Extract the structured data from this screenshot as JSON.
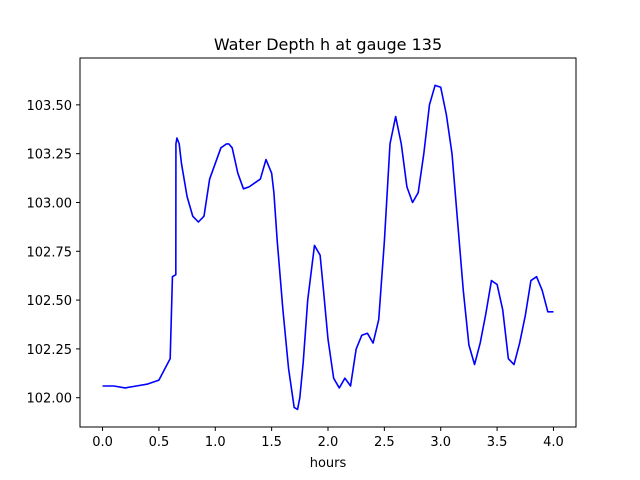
{
  "chart_data": {
    "type": "line",
    "title": "Water Depth h at gauge 135",
    "xlabel": "hours",
    "ylabel": "",
    "xlim": [
      -0.2,
      4.2
    ],
    "ylim": [
      101.85,
      103.74
    ],
    "xticks": [
      0.0,
      0.5,
      1.0,
      1.5,
      2.0,
      2.5,
      3.0,
      3.5,
      4.0
    ],
    "xtick_labels": [
      "0.0",
      "0.5",
      "1.0",
      "1.5",
      "2.0",
      "2.5",
      "3.0",
      "3.5",
      "4.0"
    ],
    "yticks": [
      102.0,
      102.25,
      102.5,
      102.75,
      103.0,
      103.25,
      103.5
    ],
    "ytick_labels": [
      "102.00",
      "102.25",
      "102.50",
      "102.75",
      "103.00",
      "103.25",
      "103.50"
    ],
    "grid": false,
    "color": "#0000ff",
    "series": [
      {
        "x": [
          0.0,
          0.1,
          0.2,
          0.3,
          0.4,
          0.5,
          0.6,
          0.62,
          0.65,
          0.651,
          0.66,
          0.68,
          0.7,
          0.75,
          0.8,
          0.85,
          0.9,
          0.95,
          1.0,
          1.05,
          1.1,
          1.12,
          1.15,
          1.2,
          1.25,
          1.3,
          1.35,
          1.4,
          1.45,
          1.5,
          1.52,
          1.55,
          1.6,
          1.65,
          1.7,
          1.73,
          1.75,
          1.78,
          1.82,
          1.88,
          1.93,
          1.96,
          2.0,
          2.05,
          2.1,
          2.15,
          2.2,
          2.25,
          2.3,
          2.35,
          2.4,
          2.45,
          2.5,
          2.55,
          2.6,
          2.65,
          2.7,
          2.75,
          2.8,
          2.85,
          2.9,
          2.95,
          3.0,
          3.05,
          3.1,
          3.15,
          3.2,
          3.25,
          3.3,
          3.35,
          3.4,
          3.45,
          3.5,
          3.55,
          3.6,
          3.65,
          3.7,
          3.75,
          3.8,
          3.85,
          3.9,
          3.95,
          4.0
        ],
        "y": [
          102.06,
          102.06,
          102.05,
          102.06,
          102.07,
          102.09,
          102.2,
          102.62,
          102.63,
          103.3,
          103.33,
          103.3,
          103.2,
          103.03,
          102.93,
          102.9,
          102.93,
          103.12,
          103.2,
          103.28,
          103.3,
          103.3,
          103.28,
          103.15,
          103.07,
          103.08,
          103.1,
          103.12,
          103.22,
          103.15,
          103.05,
          102.8,
          102.45,
          102.15,
          101.95,
          101.94,
          102.0,
          102.18,
          102.5,
          102.78,
          102.73,
          102.55,
          102.3,
          102.1,
          102.05,
          102.1,
          102.06,
          102.25,
          102.32,
          102.33,
          102.28,
          102.4,
          102.8,
          103.3,
          103.44,
          103.3,
          103.08,
          103.0,
          103.05,
          103.25,
          103.5,
          103.6,
          103.59,
          103.45,
          103.25,
          102.9,
          102.55,
          102.27,
          102.17,
          102.28,
          102.43,
          102.6,
          102.58,
          102.45,
          102.2,
          102.17,
          102.28,
          102.42,
          102.6,
          102.62,
          102.55,
          102.44,
          102.44
        ]
      }
    ]
  }
}
